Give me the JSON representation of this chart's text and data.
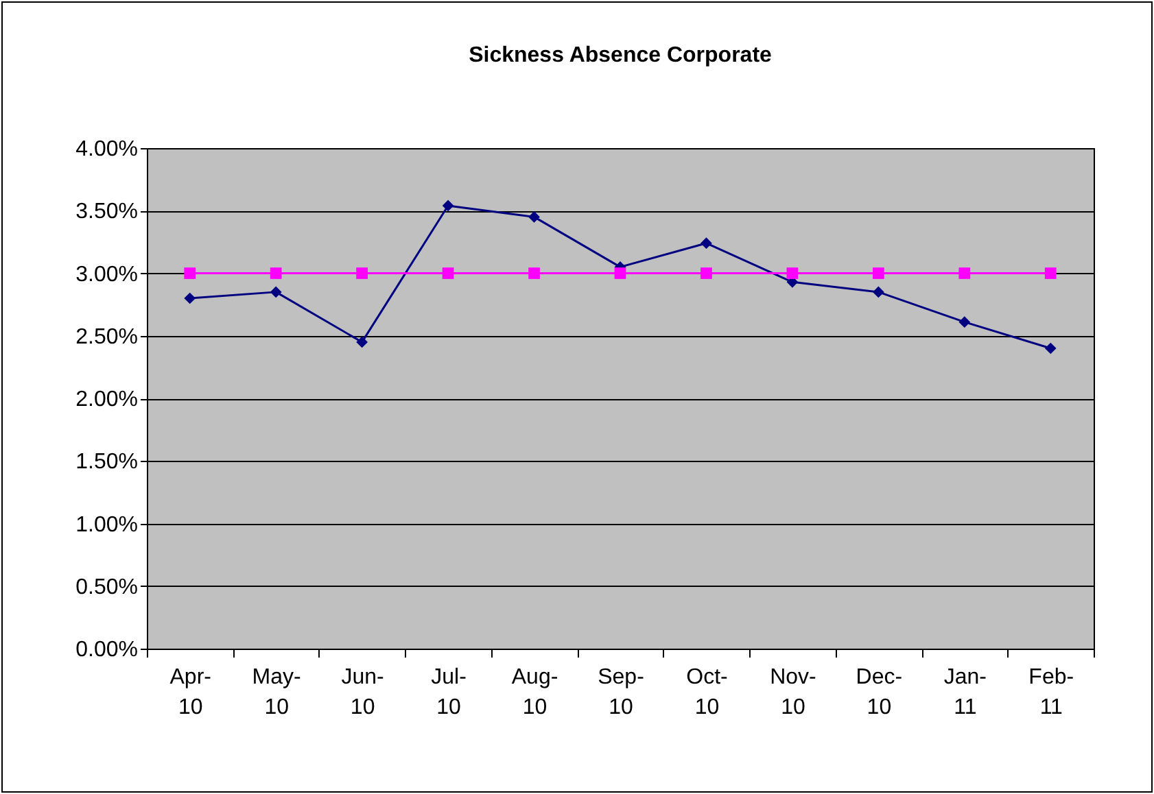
{
  "chart_data": {
    "type": "line",
    "title": "Sickness Absence Corporate",
    "categories": [
      "Apr-10",
      "May-10",
      "Jun-10",
      "Jul-10",
      "Aug-10",
      "Sep-10",
      "Oct-10",
      "Nov-10",
      "Dec-10",
      "Jan-11",
      "Feb-11"
    ],
    "series": [
      {
        "color": "#000080",
        "marker": "diamond",
        "values": [
          2.8,
          2.85,
          2.45,
          3.54,
          3.45,
          3.05,
          3.24,
          2.93,
          2.85,
          2.61,
          2.4
        ]
      },
      {
        "color": "#ff00ff",
        "marker": "square",
        "values": [
          3.0,
          3.0,
          3.0,
          3.0,
          3.0,
          3.0,
          3.0,
          3.0,
          3.0,
          3.0,
          3.0
        ]
      }
    ],
    "ylim": [
      0,
      4
    ],
    "yticks": [
      {
        "value": 0,
        "label": "0.00%"
      },
      {
        "value": 0.5,
        "label": "0.50%"
      },
      {
        "value": 1,
        "label": "1.00%"
      },
      {
        "value": 1.5,
        "label": "1.50%"
      },
      {
        "value": 2,
        "label": "2.00%"
      },
      {
        "value": 2.5,
        "label": "2.50%"
      },
      {
        "value": 3,
        "label": "3.00%"
      },
      {
        "value": 3.5,
        "label": "3.50%"
      },
      {
        "value": 4,
        "label": "4.00%"
      }
    ],
    "grid": "y"
  }
}
